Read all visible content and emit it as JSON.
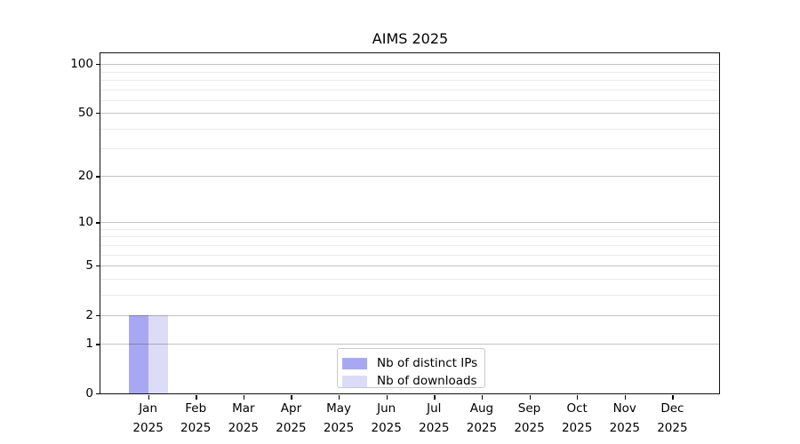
{
  "chart_data": {
    "type": "bar",
    "title": "AIMS 2025",
    "x_year": "2025",
    "x_categories": [
      "Jan",
      "Feb",
      "Mar",
      "Apr",
      "May",
      "Jun",
      "Jul",
      "Aug",
      "Sep",
      "Oct",
      "Nov",
      "Dec"
    ],
    "series": [
      {
        "name": "Nb of distinct IPs",
        "color": "#a8a8f2",
        "values": [
          2,
          0,
          0,
          0,
          0,
          0,
          0,
          0,
          0,
          0,
          0,
          0
        ]
      },
      {
        "name": "Nb of downloads",
        "color": "#dcdcf8",
        "values": [
          2,
          0,
          0,
          0,
          0,
          0,
          0,
          0,
          0,
          0,
          0,
          0
        ]
      }
    ],
    "y_scale": "log1p",
    "ylim": [
      0,
      116
    ],
    "y_major_ticks": [
      0,
      1,
      2,
      5,
      10,
      20,
      50,
      100
    ],
    "y_minor_gridlines": [
      3,
      4,
      6,
      7,
      8,
      9,
      30,
      40,
      60,
      70,
      80,
      90
    ],
    "grid": "horizontal",
    "legend_position": "lower center inside plot",
    "colors": {
      "axis": "#000000",
      "text": "#000000",
      "background": "#ffffff",
      "major_grid": "rgba(0,0,0,0.24)",
      "minor_grid": "rgba(0,0,0,0.08)",
      "legend_border": "#c8c8c8"
    }
  }
}
